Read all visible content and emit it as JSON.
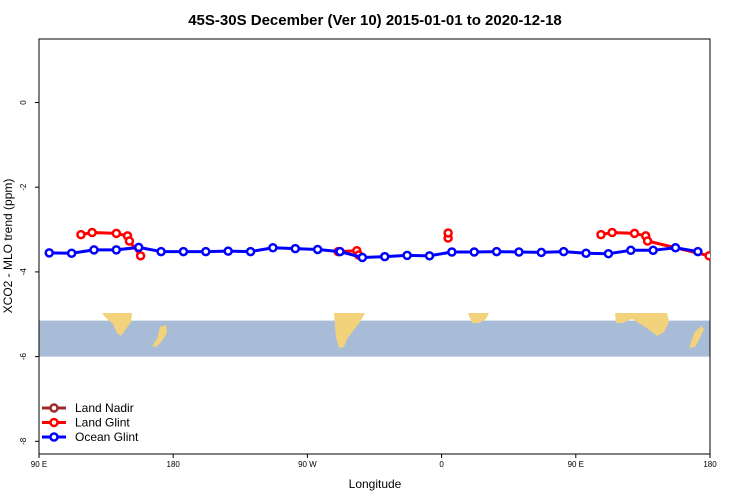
{
  "chart_data": {
    "type": "line",
    "title": "45S-30S December (Ver 10)   2015-01-01 to 2020-12-18",
    "xlabel": "Longitude",
    "ylabel": "XCO2 - MLO trend (ppm)",
    "xlim": [
      90,
      450
    ],
    "ylim": [
      -8.3,
      1.5
    ],
    "x_ticks": [
      90,
      162,
      234,
      306,
      378,
      450
    ],
    "x_tick_labels": [
      "90 E",
      "180",
      "90 W",
      "0",
      "90 E",
      "180"
    ],
    "y_ticks": [
      0,
      -2,
      -4,
      -6,
      -8
    ],
    "y_tick_labels": [
      "0",
      "-2",
      "-4",
      "-6",
      "-8"
    ],
    "map_band": {
      "y_from": -5.15,
      "y_to": -6.0,
      "ocean_color": "#a8bcd8",
      "land_color": "#f2d27a"
    },
    "legend": {
      "position": "bottom-left",
      "entries": [
        "Land Nadir",
        "Land Glint",
        "Ocean Glint"
      ]
    },
    "series": [
      {
        "name": "Land Nadir",
        "color": "#9b2a2a",
        "segments": []
      },
      {
        "name": "Land Glint",
        "color": "#ff0000",
        "segments": [
          [
            [
              112.5,
              -3.12
            ],
            [
              118.5,
              -3.07
            ],
            [
              131.5,
              -3.09
            ],
            [
              137.5,
              -3.15
            ],
            [
              138.5,
              -3.27
            ],
            [
              144.5,
              -3.62
            ]
          ],
          [
            [
              250.5,
              -3.52
            ],
            [
              260.5,
              -3.5
            ],
            [
              261.5,
              -3.6
            ]
          ],
          [
            [
              309.5,
              -3.2
            ],
            [
              309.5,
              -3.08
            ]
          ],
          [
            [
              391.5,
              -3.12
            ],
            [
              397.5,
              -3.07
            ],
            [
              409.5,
              -3.09
            ],
            [
              415.5,
              -3.15
            ],
            [
              416.5,
              -3.27
            ],
            [
              449.5,
              -3.62
            ]
          ]
        ]
      },
      {
        "name": "Ocean Glint",
        "color": "#0000ff",
        "segments": [
          [
            [
              95.5,
              -3.55
            ],
            [
              107.5,
              -3.56
            ],
            [
              119.5,
              -3.48
            ],
            [
              131.5,
              -3.48
            ],
            [
              143.5,
              -3.42
            ],
            [
              155.5,
              -3.52
            ],
            [
              167.5,
              -3.52
            ],
            [
              179.5,
              -3.52
            ],
            [
              191.5,
              -3.51
            ],
            [
              203.5,
              -3.52
            ],
            [
              215.5,
              -3.43
            ],
            [
              227.5,
              -3.45
            ],
            [
              239.5,
              -3.47
            ],
            [
              251.5,
              -3.52
            ],
            [
              263.5,
              -3.66
            ],
            [
              275.5,
              -3.64
            ],
            [
              287.5,
              -3.61
            ],
            [
              299.5,
              -3.62
            ],
            [
              311.5,
              -3.53
            ],
            [
              323.5,
              -3.53
            ],
            [
              335.5,
              -3.52
            ],
            [
              347.5,
              -3.53
            ],
            [
              359.5,
              -3.54
            ],
            [
              371.5,
              -3.52
            ],
            [
              383.5,
              -3.56
            ],
            [
              395.5,
              -3.57
            ],
            [
              407.5,
              -3.49
            ],
            [
              419.5,
              -3.49
            ],
            [
              431.5,
              -3.43
            ],
            [
              443.5,
              -3.52
            ]
          ]
        ]
      }
    ]
  }
}
